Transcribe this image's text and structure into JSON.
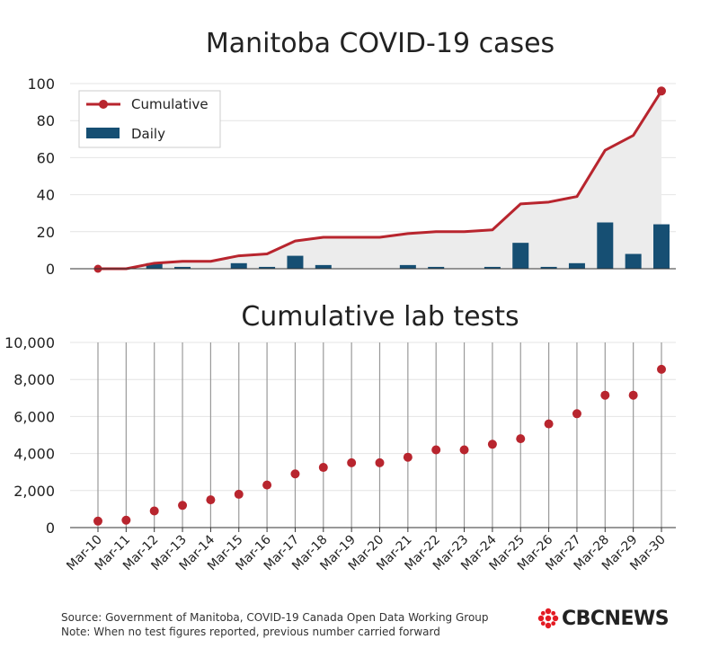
{
  "chart_data": [
    {
      "type": "line",
      "title": "Manitoba COVID-19 cases",
      "xlabel": "",
      "ylabel": "",
      "ylim": [
        0,
        100
      ],
      "yticks": [
        0,
        20,
        40,
        60,
        80,
        100
      ],
      "categories": [
        "Mar-10",
        "Mar-11",
        "Mar-12",
        "Mar-13",
        "Mar-14",
        "Mar-15",
        "Mar-16",
        "Mar-17",
        "Mar-18",
        "Mar-19",
        "Mar-20",
        "Mar-21",
        "Mar-22",
        "Mar-23",
        "Mar-24",
        "Mar-25",
        "Mar-26",
        "Mar-27",
        "Mar-28",
        "Mar-29",
        "Mar-30"
      ],
      "series": [
        {
          "name": "Cumulative",
          "type": "line",
          "color": "#b8252e",
          "values": [
            0,
            0,
            3,
            4,
            4,
            7,
            8,
            15,
            17,
            17,
            17,
            19,
            20,
            20,
            21,
            35,
            36,
            39,
            64,
            72,
            96
          ]
        },
        {
          "name": "Daily",
          "type": "bar",
          "color": "#164f73",
          "values": [
            0,
            0,
            3,
            1,
            0,
            3,
            1,
            7,
            2,
            0,
            0,
            2,
            1,
            0,
            1,
            14,
            1,
            3,
            25,
            8,
            24
          ]
        }
      ],
      "legend": "top-left",
      "grid": true
    },
    {
      "type": "scatter",
      "title": "Cumulative lab tests",
      "xlabel": "",
      "ylabel": "",
      "ylim": [
        0,
        10000
      ],
      "yticks": [
        0,
        2000,
        4000,
        6000,
        8000,
        10000
      ],
      "ytick_labels": [
        "0",
        "2,000",
        "4,000",
        "6,000",
        "8,000",
        "10,000"
      ],
      "categories": [
        "Mar-10",
        "Mar-11",
        "Mar-12",
        "Mar-13",
        "Mar-14",
        "Mar-15",
        "Mar-16",
        "Mar-17",
        "Mar-18",
        "Mar-19",
        "Mar-20",
        "Mar-21",
        "Mar-22",
        "Mar-23",
        "Mar-24",
        "Mar-25",
        "Mar-26",
        "Mar-27",
        "Mar-28",
        "Mar-29",
        "Mar-30"
      ],
      "series": [
        {
          "name": "",
          "color": "#b8252e",
          "values": [
            350,
            400,
            900,
            1200,
            1500,
            1800,
            2300,
            2900,
            3250,
            3500,
            3500,
            3800,
            4200,
            4200,
            4500,
            4800,
            5600,
            6150,
            7150,
            7150,
            8550
          ]
        }
      ],
      "grid": true
    }
  ],
  "footer": {
    "source": "Source: Government of Manitoba, COVID-19 Canada Open Data Working Group",
    "note": "Note: When no test figures reported, previous number carried forward"
  },
  "logo": {
    "text": "CBCNEWS",
    "icon": "cbc-gem-icon"
  }
}
